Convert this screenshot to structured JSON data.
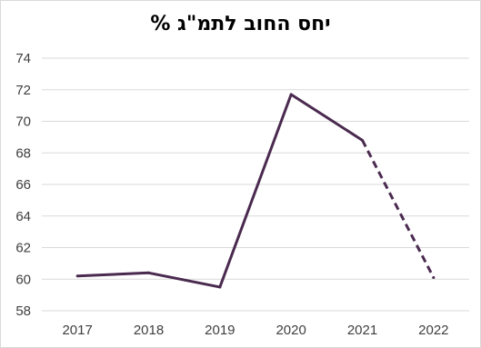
{
  "chart_data": {
    "type": "line",
    "title": "יחס החוב לתמ\"ג %",
    "xlabel": "",
    "ylabel": "",
    "categories": [
      "2017",
      "2018",
      "2019",
      "2020",
      "2021",
      "2022"
    ],
    "series": [
      {
        "values": [
          60.2,
          60.4,
          59.5,
          71.7,
          68.8,
          60.1
        ],
        "dashed_from_index": 4
      }
    ],
    "yticks": [
      58,
      60,
      62,
      64,
      66,
      68,
      70,
      72,
      74
    ],
    "ylim": [
      58,
      74
    ],
    "grid": true,
    "legend": "none",
    "colors": {
      "line": "#4a2a4f",
      "grid": "#d9d9d9",
      "tick_text": "#404040"
    }
  }
}
